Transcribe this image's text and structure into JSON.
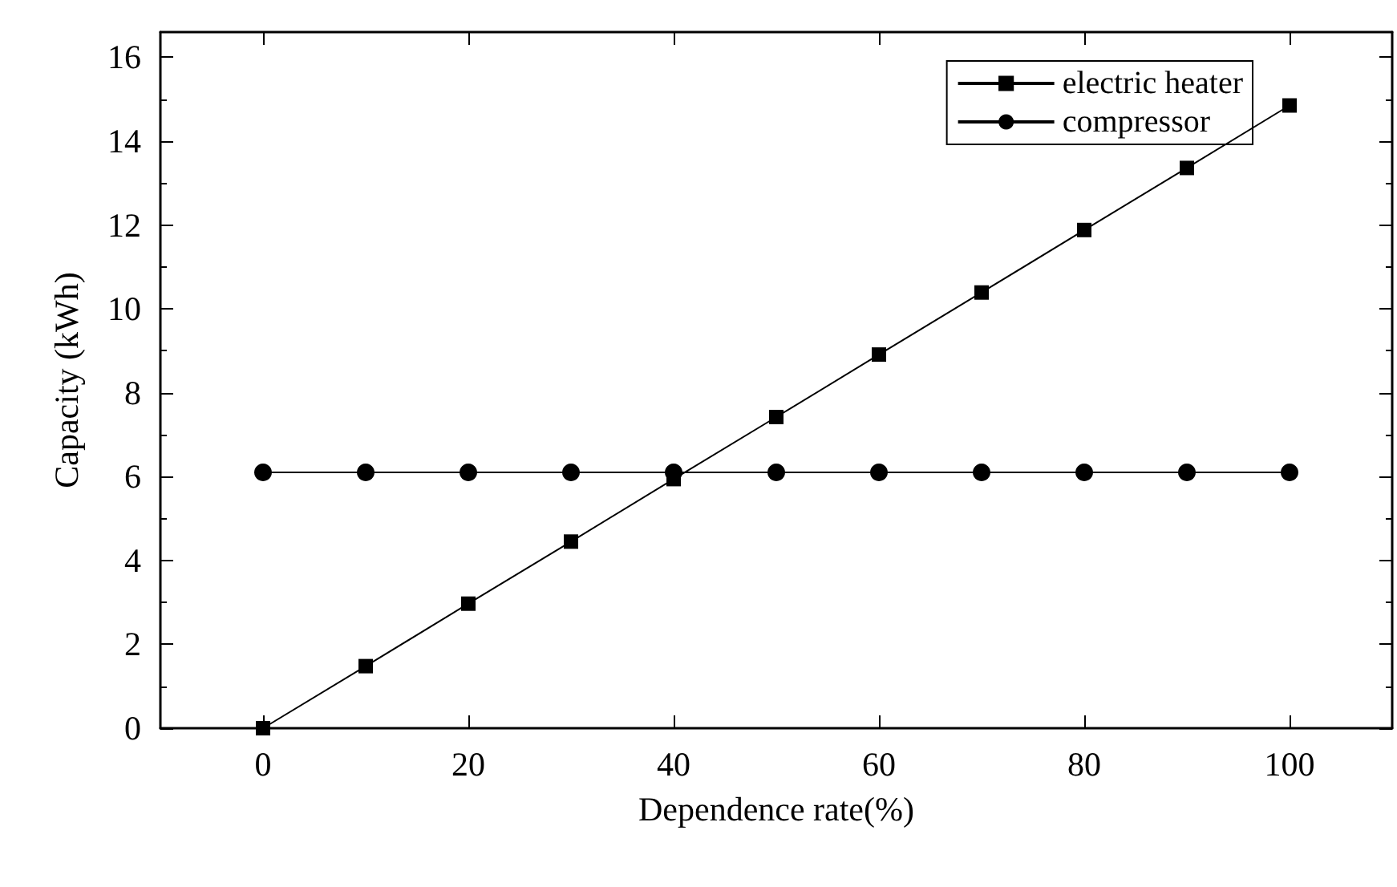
{
  "chart_data": {
    "type": "line",
    "xlabel": "Dependence rate(%)",
    "ylabel": "Capacity (kWh)",
    "x": [
      0,
      10,
      20,
      30,
      40,
      50,
      60,
      70,
      80,
      90,
      100
    ],
    "series": [
      {
        "name": "electric heater",
        "color": "#000000",
        "marker": "square",
        "values": [
          0,
          1.48,
          2.97,
          4.45,
          5.94,
          7.42,
          8.91,
          10.39,
          11.88,
          13.36,
          14.85
        ]
      },
      {
        "name": "compressor",
        "color": "#000000",
        "marker": "circle",
        "values": [
          6.1,
          6.1,
          6.1,
          6.1,
          6.1,
          6.1,
          6.1,
          6.1,
          6.1,
          6.1,
          6.1
        ]
      }
    ],
    "xlim": [
      -10,
      110
    ],
    "xticks": [
      0,
      20,
      40,
      60,
      80,
      100
    ],
    "ylim": [
      0,
      16.6
    ],
    "yticks": [
      0,
      2,
      4,
      6,
      8,
      10,
      12,
      14,
      16
    ],
    "legend": "top right",
    "grid": false,
    "line_style": "solid"
  }
}
